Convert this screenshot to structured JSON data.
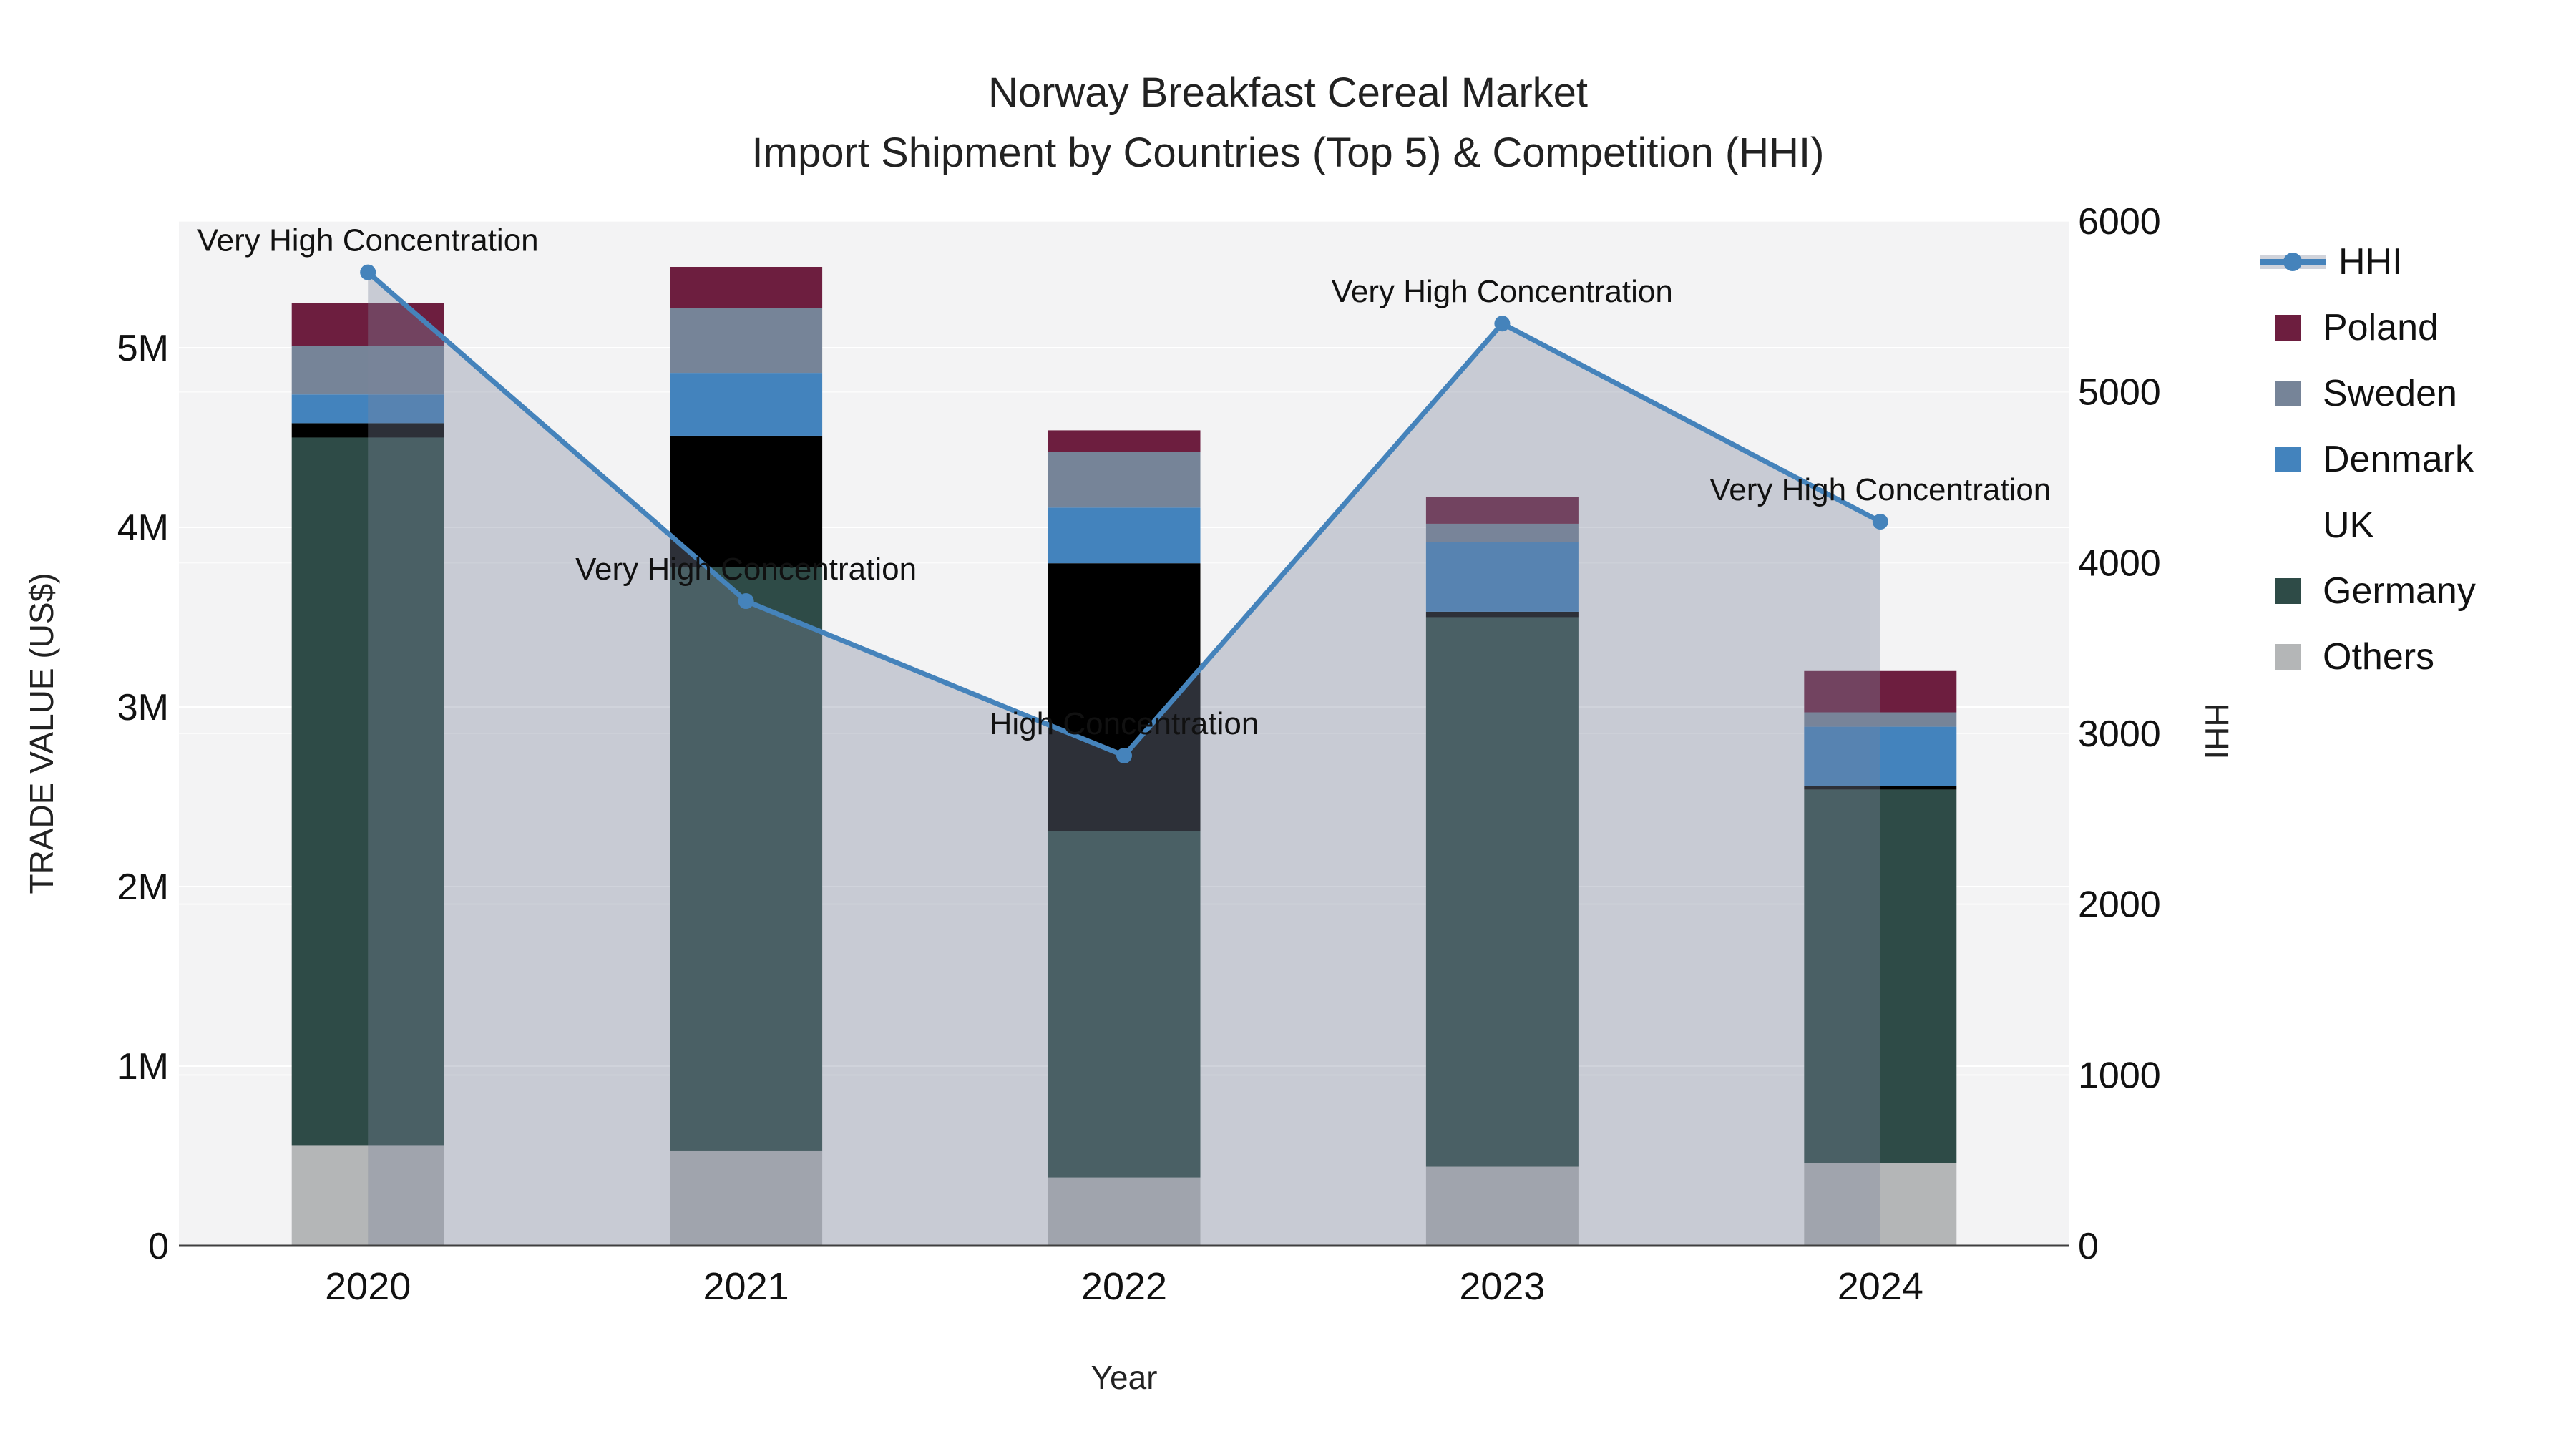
{
  "figure": {
    "title_line1": "Norway Breakfast Cereal Market",
    "title_line2": "Import Shipment by Countries (Top 5) & Competition (HHI)"
  },
  "legend": {
    "items": [
      {
        "label": "HHI",
        "type": "line",
        "color": "#4583bb"
      },
      {
        "label": "Poland",
        "type": "bar",
        "color": "#6d1e3f"
      },
      {
        "label": "Sweden",
        "type": "bar",
        "color": "#768498"
      },
      {
        "label": "Denmark",
        "type": "bar",
        "color": "#4383bd"
      },
      {
        "label": "UK",
        "type": "bar",
        "color": "#6babа5"
      },
      {
        "label": "Germany",
        "type": "bar",
        "color": "#2e4b47"
      },
      {
        "label": "Others",
        "type": "bar",
        "color": "#b4b6b7"
      }
    ]
  },
  "chart_data": {
    "type": "bar",
    "subtype": "stacked-bars-with-line-overlay",
    "title": "Norway Breakfast Cereal Market — Import Shipment by Countries (Top 5) & Competition (HHI)",
    "categories": [
      "2020",
      "2021",
      "2022",
      "2023",
      "2024"
    ],
    "series": [
      {
        "name": "Others",
        "color": "#b4b6b7",
        "values": [
          0.56,
          0.53,
          0.38,
          0.44,
          0.46
        ]
      },
      {
        "name": "Germany",
        "color": "#2e4b47",
        "values": [
          3.94,
          3.25,
          1.93,
          3.06,
          2.08
        ]
      },
      {
        "name": "UK",
        "color": "#6babа5",
        "values": [
          0.08,
          0.73,
          1.49,
          0.03,
          0.02
        ]
      },
      {
        "name": "Denmark",
        "color": "#4383bd",
        "values": [
          0.16,
          0.35,
          0.31,
          0.39,
          0.33
        ]
      },
      {
        "name": "Sweden",
        "color": "#768498",
        "values": [
          0.27,
          0.36,
          0.31,
          0.1,
          0.08
        ]
      },
      {
        "name": "Poland",
        "color": "#6d1e3f",
        "values": [
          0.24,
          0.23,
          0.12,
          0.15,
          0.23
        ]
      }
    ],
    "bar_totals_millions": [
      5.25,
      5.45,
      4.54,
      4.17,
      3.2
    ],
    "line_series": {
      "name": "HHI",
      "color": "#4583bb",
      "area_fill": "rgba(124,134,154,0.36)",
      "values": [
        5700,
        3775,
        2870,
        5400,
        4240
      ]
    },
    "annotations": [
      {
        "category": "2020",
        "text": "Very High Concentration"
      },
      {
        "category": "2021",
        "text": "Very High Concentration"
      },
      {
        "category": "2022",
        "text": "High Concentration"
      },
      {
        "category": "2023",
        "text": "Very High Concentration"
      },
      {
        "category": "2024",
        "text": "Very High Concentration"
      }
    ],
    "left_axis": {
      "label": "TRADE VALUE (US$)",
      "tick_labels": [
        "0",
        "1M",
        "2M",
        "3M",
        "4M",
        "5M"
      ],
      "tick_values": [
        0,
        1,
        2,
        3,
        4,
        5
      ],
      "range": [
        0,
        5.705
      ],
      "units": "millions US$"
    },
    "right_axis": {
      "label": "HHI",
      "tick_labels": [
        "0",
        "1000",
        "2000",
        "3000",
        "4000",
        "5000",
        "6000"
      ],
      "tick_values": [
        0,
        1000,
        2000,
        3000,
        4000,
        5000,
        6000
      ],
      "range": [
        0,
        6000
      ]
    },
    "x_axis": {
      "label": "Year"
    },
    "grid": true,
    "legend_position": "right",
    "plot_bg": "#f3f3f4",
    "grid_color": "#ffffff",
    "axis_line_color": "#3f3f3f",
    "text_color": "#111111"
  }
}
